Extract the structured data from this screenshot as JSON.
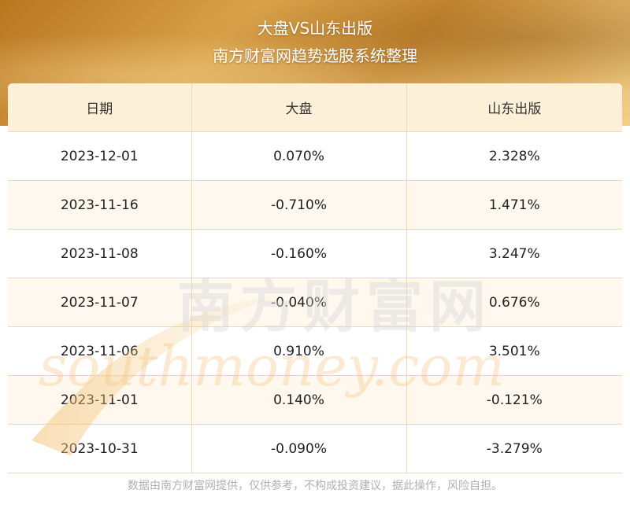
{
  "header": {
    "title": "大盘VS山东出版",
    "subtitle": "南方财富网趋势选股系统整理"
  },
  "chart_data": {
    "type": "table",
    "columns": [
      "日期",
      "大盘",
      "山东出版"
    ],
    "rows": [
      [
        "2023-12-01",
        "0.070%",
        "2.328%"
      ],
      [
        "2023-11-16",
        "-0.710%",
        "1.471%"
      ],
      [
        "2023-11-08",
        "-0.160%",
        "3.247%"
      ],
      [
        "2023-11-07",
        "-0.040%",
        "0.676%"
      ],
      [
        "2023-11-06",
        "0.910%",
        "3.501%"
      ],
      [
        "2023-11-01",
        "0.140%",
        "-0.121%"
      ],
      [
        "2023-10-31",
        "-0.090%",
        "-3.279%"
      ]
    ]
  },
  "watermark": {
    "cn": "南方财富网",
    "en": "southmoney.com"
  },
  "footer": {
    "disclaimer": "数据由南方财富网提供，仅供参考，不构成投资建议，据此操作，风险自担。"
  }
}
